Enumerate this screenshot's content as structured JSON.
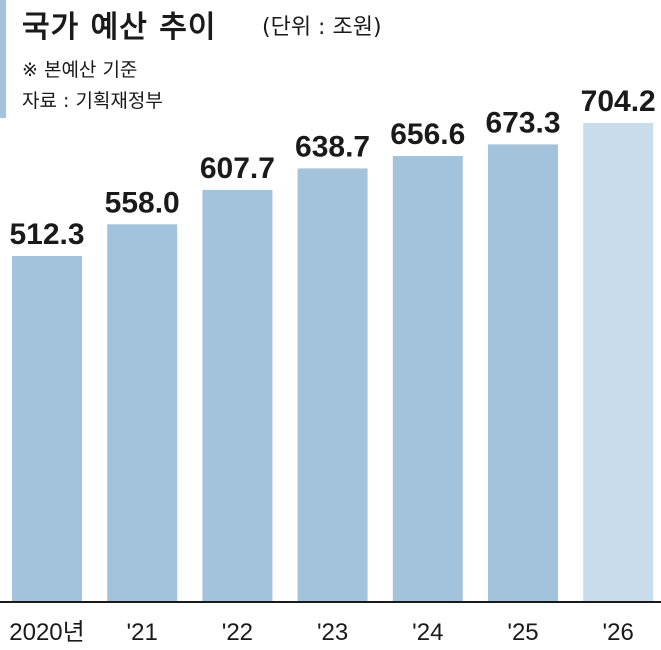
{
  "header": {
    "title": "국가 예산 추이",
    "unit": "(단위 : 조원)",
    "note": "※ 본예산 기준",
    "source": "자료 : 기획재정부"
  },
  "colors": {
    "bar": "#a3c3dc",
    "bar_highlight": "#c9dcec",
    "accent": "#a3c3dc",
    "text": "#1a1a1a"
  },
  "chart_data": {
    "type": "bar",
    "categories": [
      "2020년",
      "'21",
      "'22",
      "'23",
      "'24",
      "'25",
      "'26"
    ],
    "values": [
      512.3,
      558.0,
      607.7,
      638.7,
      656.6,
      673.3,
      704.2
    ],
    "value_labels": [
      "512.3",
      "558.0",
      "607.7",
      "638.7",
      "656.6",
      "673.3",
      "704.2"
    ],
    "title": "국가 예산 추이",
    "unit": "조원",
    "highlight_index": 6,
    "grid": false,
    "legend": "none"
  }
}
